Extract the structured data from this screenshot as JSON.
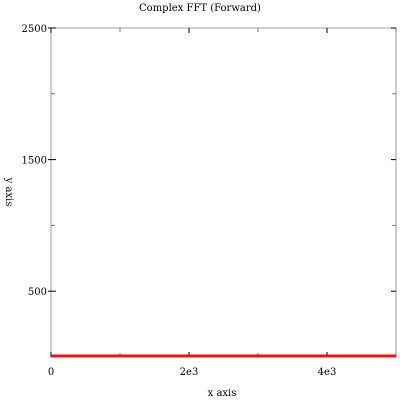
{
  "chart_data": {
    "type": "line",
    "title": "Complex FFT (Forward)",
    "xlabel": "x axis",
    "ylabel": "y axis",
    "xlim": [
      0,
      5000
    ],
    "ylim": [
      0,
      2500
    ],
    "x_ticks": [
      {
        "value": 0,
        "label": "0"
      },
      {
        "value": 2000,
        "label": "2e3"
      },
      {
        "value": 4000,
        "label": "4e3"
      }
    ],
    "x_minor_ticks": [
      1000,
      3000,
      5000
    ],
    "y_ticks": [
      {
        "value": 500,
        "label": "500"
      },
      {
        "value": 1500,
        "label": "1500"
      },
      {
        "value": 2500,
        "label": "2500"
      }
    ],
    "y_minor_ticks": [
      1000,
      2000
    ],
    "grid": false,
    "series": [
      {
        "color": "#ee1111",
        "x": [
          0,
          5000
        ],
        "y": [
          0,
          0
        ]
      }
    ]
  }
}
